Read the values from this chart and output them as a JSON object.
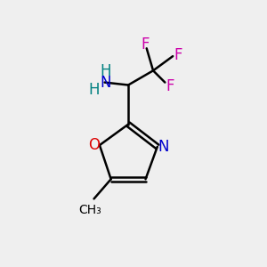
{
  "background_color": "#efefef",
  "bond_color": "#000000",
  "N_color": "#0000cc",
  "O_color": "#dd0000",
  "F_color": "#cc00aa",
  "NH_color": "#008080",
  "figsize": [
    3.0,
    3.0
  ],
  "dpi": 100,
  "xlim": [
    0,
    10
  ],
  "ylim": [
    0,
    10
  ]
}
